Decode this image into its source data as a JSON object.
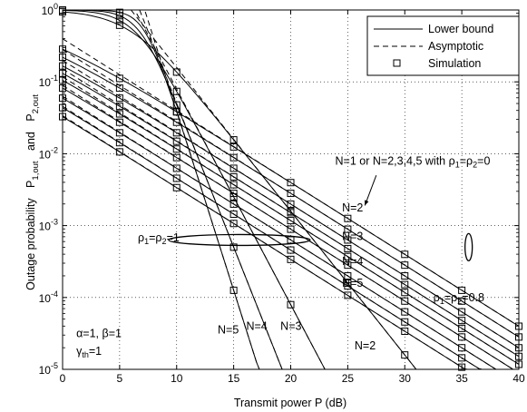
{
  "chart_data": {
    "type": "line",
    "xlabel": "Transmit power P (dB)",
    "ylabel": {
      "text": "Outage probability",
      "p1_base": "P",
      "p1_sub": "1,out",
      "and": "and",
      "p2_base": "P",
      "p2_sub": "2,out"
    },
    "x_axis": {
      "min": 0,
      "max": 40,
      "ticks": [
        0,
        5,
        10,
        15,
        20,
        25,
        30,
        35,
        40
      ],
      "tick_labels": [
        "0",
        "5",
        "10",
        "15",
        "20",
        "25",
        "30",
        "35",
        "40"
      ]
    },
    "y_axis": {
      "scale": "log",
      "min_exp": -5,
      "max_exp": 0,
      "ticks": [
        {
          "exp": 0,
          "base": "10",
          "sup": "0"
        },
        {
          "exp": -1,
          "base": "10",
          "sup": "-1"
        },
        {
          "exp": -2,
          "base": "10",
          "sup": "-2"
        },
        {
          "exp": -3,
          "base": "10",
          "sup": "-3"
        },
        {
          "exp": -4,
          "base": "10",
          "sup": "-4"
        },
        {
          "exp": -5,
          "base": "10",
          "sup": "-5"
        }
      ]
    },
    "grid": true,
    "legend": {
      "placement": "top-right",
      "entries": [
        {
          "label": "Lower bound",
          "style": "solid"
        },
        {
          "label": "Asymptotic",
          "style": "dashed"
        },
        {
          "label": "Simulation",
          "style": "square-marker"
        }
      ]
    },
    "sim_x": [
      0,
      5,
      10,
      15,
      20,
      25,
      30,
      35,
      40
    ],
    "groups": [
      {
        "id": "rho0",
        "slope": 1.0,
        "curves": [
          {
            "n": 1,
            "log_ref": -2.4
          },
          {
            "n": 2,
            "log_ref": -2.55
          },
          {
            "n": 3,
            "log_ref": -2.7
          },
          {
            "n": 4,
            "log_ref": -2.82
          },
          {
            "n": 5,
            "log_ref": -2.93
          }
        ]
      },
      {
        "id": "rho08",
        "slope": 1.0,
        "curves": [
          {
            "n": 2,
            "log_ref": -3.05
          },
          {
            "n": 3,
            "log_ref": -3.2
          },
          {
            "n": 4,
            "log_ref": -3.34
          },
          {
            "n": 5,
            "log_ref": -3.47
          }
        ]
      },
      {
        "id": "rho1",
        "curves": [
          {
            "n": 2,
            "slope": 2,
            "log_ref": -2.8
          },
          {
            "n": 3,
            "slope": 3,
            "log_ref": -4.1
          },
          {
            "n": 4,
            "slope": 4,
            "log_ref": -5.3
          },
          {
            "n": 5,
            "slope": 5,
            "log_ref": -6.4
          }
        ]
      }
    ],
    "annotations": [
      {
        "id": "rho0-label",
        "text": "N=1 or N=2,3,4,5 with ρ",
        "sub1": "1",
        "mid": "=ρ",
        "sub2": "2",
        "tail": "=0",
        "x": 23.9,
        "log": -2.15
      },
      {
        "id": "n-list-2",
        "text": "N=2",
        "x": 24.5,
        "log": -2.8
      },
      {
        "id": "n-list-3",
        "text": "N=3",
        "x": 24.5,
        "log": -3.2
      },
      {
        "id": "n-list-4",
        "text": "N=4",
        "x": 24.5,
        "log": -3.55
      },
      {
        "id": "n-list-5",
        "text": "N=5",
        "x": 24.5,
        "log": -3.85
      },
      {
        "id": "rho08-label",
        "text": "ρ",
        "sub1": "1",
        "mid": "=ρ",
        "sub2": "2",
        "tail": "=0.8",
        "x": 32.5,
        "log": -4.05
      },
      {
        "id": "rho1-label",
        "text": "ρ",
        "sub1": "1",
        "mid": "=ρ",
        "sub2": "2",
        "tail": "=1",
        "x": 6.6,
        "log": -3.22
      },
      {
        "id": "n2-label",
        "text": "N=2",
        "x": 25.6,
        "log": -4.72
      },
      {
        "id": "n3-label",
        "text": "N=3",
        "x": 19.1,
        "log": -4.45
      },
      {
        "id": "n4-label",
        "text": "N=4",
        "x": 16.1,
        "log": -4.45
      },
      {
        "id": "n5-label",
        "text": "N=5",
        "x": 13.6,
        "log": -4.5
      },
      {
        "id": "params-1",
        "text": "α=1, β=1",
        "x": 1.2,
        "log": -4.55
      },
      {
        "id": "params-2",
        "text": "γ",
        "sub1": "th",
        "tail": "=1",
        "x": 1.2,
        "log": -4.8
      }
    ]
  }
}
